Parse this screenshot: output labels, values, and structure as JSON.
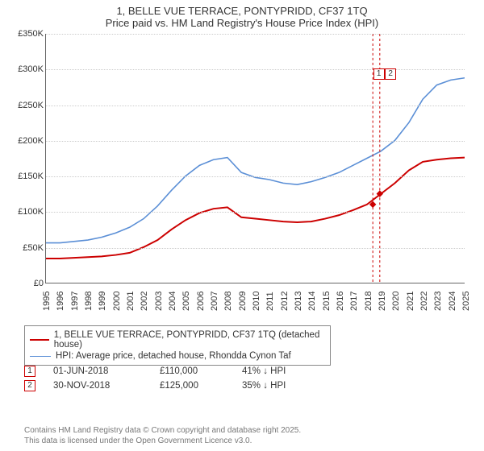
{
  "title_line1": "1, BELLE VUE TERRACE, PONTYPRIDD, CF37 1TQ",
  "title_line2": "Price paid vs. HM Land Registry's House Price Index (HPI)",
  "chart": {
    "type": "line",
    "background_color": "#ffffff",
    "grid_color": "#cccccc",
    "axis_color": "#666666",
    "axis_fontsize": 11,
    "title_fontsize": 13,
    "title_color": "#333333",
    "x_start_year": 1995,
    "x_end_year": 2025,
    "ylim": [
      0,
      350000
    ],
    "ytick_step": 50000,
    "yticks": [
      "£0",
      "£50K",
      "£100K",
      "£150K",
      "£200K",
      "£250K",
      "£300K",
      "£350K"
    ],
    "xticks": [
      "1995",
      "1996",
      "1997",
      "1998",
      "1999",
      "2000",
      "2001",
      "2002",
      "2003",
      "2004",
      "2005",
      "2006",
      "2007",
      "2008",
      "2009",
      "2010",
      "2011",
      "2012",
      "2013",
      "2014",
      "2015",
      "2016",
      "2017",
      "2018",
      "2019",
      "2020",
      "2021",
      "2022",
      "2023",
      "2024",
      "2025"
    ],
    "series": [
      {
        "name": "1, BELLE VUE TERRACE, PONTYPRIDD, CF37 1TQ (detached house)",
        "color": "#cc0000",
        "line_width": 2,
        "values": [
          34000,
          34000,
          35000,
          36000,
          37000,
          39000,
          42000,
          50000,
          60000,
          75000,
          88000,
          98000,
          104000,
          106000,
          92000,
          90000,
          88000,
          86000,
          85000,
          86000,
          90000,
          95000,
          102000,
          110000,
          125000,
          140000,
          158000,
          170000,
          173000,
          175000,
          176000
        ]
      },
      {
        "name": "HPI: Average price, detached house, Rhondda Cynon Taf",
        "color": "#5b8fd6",
        "line_width": 1.6,
        "values": [
          56000,
          56000,
          58000,
          60000,
          64000,
          70000,
          78000,
          90000,
          108000,
          130000,
          150000,
          165000,
          173000,
          176000,
          155000,
          148000,
          145000,
          140000,
          138000,
          142000,
          148000,
          155000,
          165000,
          175000,
          185000,
          200000,
          225000,
          258000,
          278000,
          285000,
          288000
        ]
      }
    ],
    "transaction_markers": [
      {
        "n": "1",
        "year": 2018.42,
        "price": 110000,
        "color": "#cc0000",
        "label_xy": [
          0.78,
          0.14
        ]
      },
      {
        "n": "2",
        "year": 2018.92,
        "price": 125000,
        "color": "#cc0000",
        "label_xy": [
          0.808,
          0.14
        ]
      }
    ]
  },
  "legend": {
    "border_color": "#888888",
    "fontsize": 11.5,
    "items": [
      {
        "label": "1, BELLE VUE TERRACE, PONTYPRIDD, CF37 1TQ (detached house)",
        "color": "#cc0000",
        "line_width": 2
      },
      {
        "label": "HPI: Average price, detached house, Rhondda Cynon Taf",
        "color": "#5b8fd6",
        "line_width": 1.6
      }
    ]
  },
  "transactions": [
    {
      "n": "1",
      "date": "01-JUN-2018",
      "price": "£110,000",
      "pct": "41% ↓ HPI",
      "border_color": "#cc0000"
    },
    {
      "n": "2",
      "date": "30-NOV-2018",
      "price": "£125,000",
      "pct": "35% ↓ HPI",
      "border_color": "#cc0000"
    }
  ],
  "footer_line1": "Contains HM Land Registry data © Crown copyright and database right 2025.",
  "footer_line2": "This data is licensed under the Open Government Licence v3.0."
}
